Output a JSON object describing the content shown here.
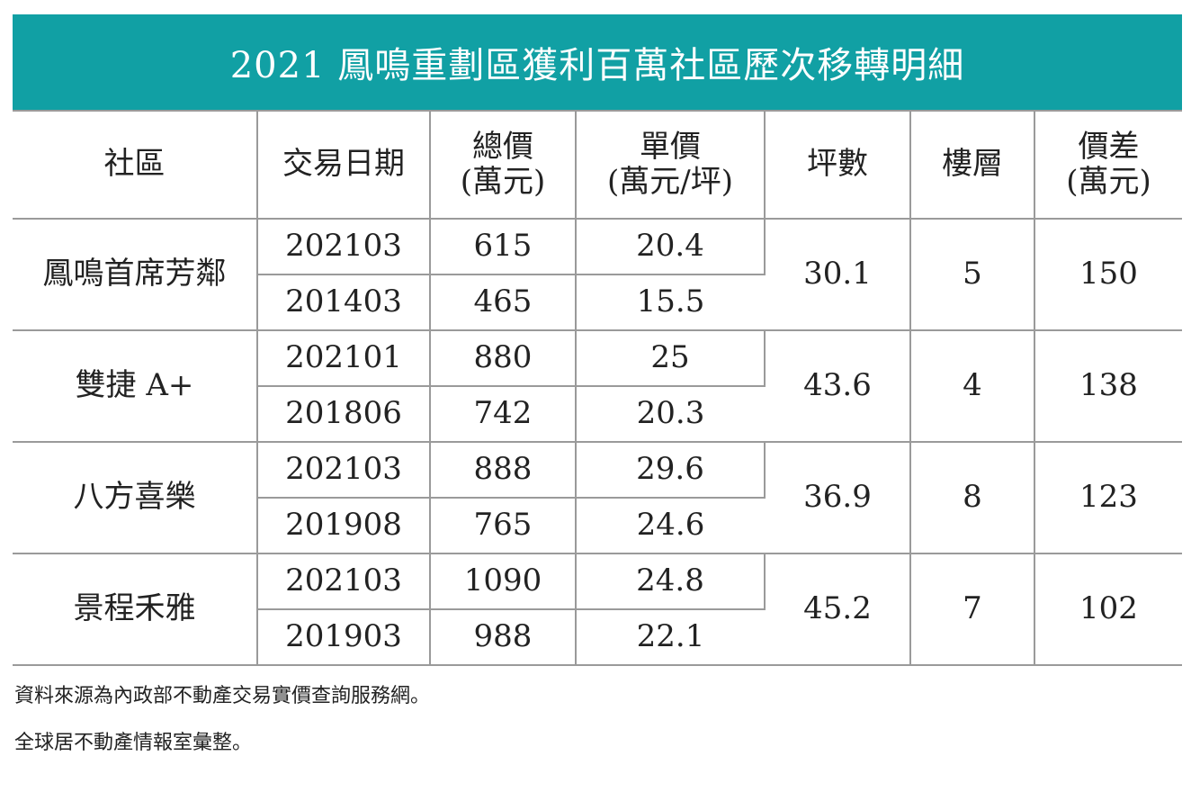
{
  "title": "2021 鳳鳴重劃區獲利百萬社區歷次移轉明細",
  "chart_data": {
    "type": "table",
    "title": "2021 鳳鳴重劃區獲利百萬社區歷次移轉明細",
    "columns": [
      {
        "key": "community",
        "lines": [
          "社區"
        ]
      },
      {
        "key": "date",
        "lines": [
          "交易日期"
        ]
      },
      {
        "key": "total_price",
        "lines": [
          "總價",
          "(萬元)"
        ]
      },
      {
        "key": "unit_price",
        "lines": [
          "單價",
          "(萬元/坪)"
        ]
      },
      {
        "key": "ping",
        "lines": [
          "坪數"
        ]
      },
      {
        "key": "floor",
        "lines": [
          "樓層"
        ]
      },
      {
        "key": "price_diff",
        "lines": [
          "價差",
          "(萬元)"
        ]
      }
    ],
    "groups": [
      {
        "community": "鳳鳴首席芳鄰",
        "ping": "30.1",
        "floor": "5",
        "price_diff": "150",
        "transactions": [
          {
            "date": "202103",
            "total_price": "615",
            "unit_price": "20.4"
          },
          {
            "date": "201403",
            "total_price": "465",
            "unit_price": "15.5"
          }
        ]
      },
      {
        "community": "雙捷 A+",
        "ping": "43.6",
        "floor": "4",
        "price_diff": "138",
        "transactions": [
          {
            "date": "202101",
            "total_price": "880",
            "unit_price": "25"
          },
          {
            "date": "201806",
            "total_price": "742",
            "unit_price": "20.3"
          }
        ]
      },
      {
        "community": "八方喜樂",
        "ping": "36.9",
        "floor": "8",
        "price_diff": "123",
        "transactions": [
          {
            "date": "202103",
            "total_price": "888",
            "unit_price": "29.6"
          },
          {
            "date": "201908",
            "total_price": "765",
            "unit_price": "24.6"
          }
        ]
      },
      {
        "community": "景程禾雅",
        "ping": "45.2",
        "floor": "7",
        "price_diff": "102",
        "transactions": [
          {
            "date": "202103",
            "total_price": "1090",
            "unit_price": "24.8"
          },
          {
            "date": "201903",
            "total_price": "988",
            "unit_price": "22.1"
          }
        ]
      }
    ]
  },
  "footnotes": [
    "資料來源為內政部不動產交易實價查詢服務網。",
    "全球居不動產情報室彙整。"
  ],
  "colors": {
    "title_background": "#11a0a4",
    "title_text": "#ffffff",
    "grid_line": "#9a9a9a"
  }
}
